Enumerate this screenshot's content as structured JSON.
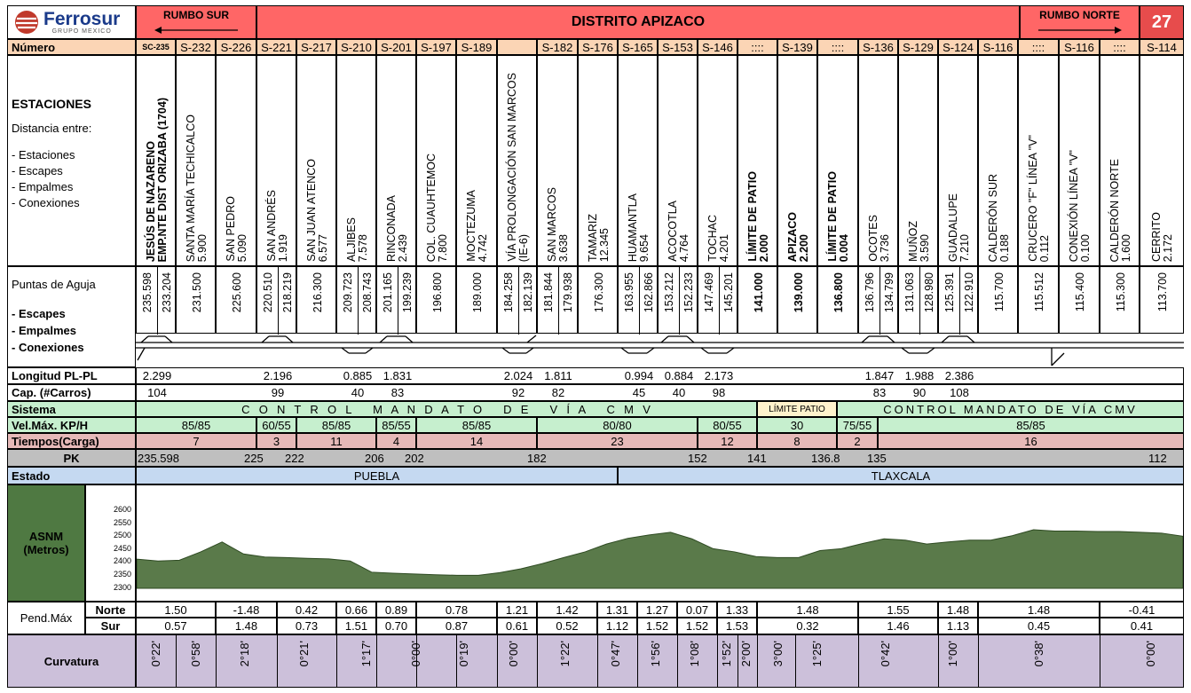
{
  "header": {
    "logo_text": "Ferrosur",
    "logo_sub": "GRUPO MEXICO",
    "rumbo_sur": "RUMBO SUR",
    "distrito": "DISTRITO APIZACO",
    "rumbo_norte": "RUMBO NORTE",
    "page": "27",
    "colors": {
      "red": "#ff6666",
      "peach": "#fbd5b5",
      "green": "#c6efce",
      "blue": "#c5d9f1",
      "pink": "#e6b9b8",
      "grey": "#bfbfbf",
      "purple": "#ccc0da",
      "asnm_green": "#4f7942"
    }
  },
  "labels": {
    "numero": "Número",
    "estaciones": "ESTACIONES",
    "distancia": "Distancia entre:",
    "d1": "- Estaciones",
    "d2": "- Escapes",
    "d3": "- Empalmes",
    "d4": "- Conexiones",
    "puntas": "Puntas de Aguja",
    "p1": "- Escapes",
    "p2": "- Empalmes",
    "p3": "- Conexiones",
    "longitud": "Longitud PL-PL",
    "cap": "Cap. (#Carros)",
    "sistema": "Sistema",
    "velmax": "Vel.Máx. KP/H",
    "tiempos": "Tiempos(Carga)",
    "pk": "PK",
    "estado": "Estado",
    "asnm": "ASNM (Metros)",
    "pend": "Pend.Máx",
    "norte": "Norte",
    "sur": "Sur",
    "curvatura": "Curvatura"
  },
  "numeros": [
    "SC-235",
    "S-232",
    "S-226",
    "S-221",
    "S-217",
    "S-210",
    "S-201",
    "S-197",
    "S-189",
    "",
    "S-182",
    "S-176",
    "S-165",
    "S-153",
    "S-146",
    "::::",
    "S-139",
    "::::",
    "S-136",
    "S-129",
    "S-124",
    "S-116",
    "::::",
    "S-116",
    "::::",
    "S-114"
  ],
  "stations": [
    {
      "name": "JESÚS DE NAZARENO",
      "name2": "EMP.NTE DIST ORIZABA (1704)",
      "dist": "",
      "bold": true
    },
    {
      "name": "SANTA MARÍA TECHICALCO",
      "dist": "5.900"
    },
    {
      "name": "SAN PEDRO",
      "dist": "5.090"
    },
    {
      "name": "SAN ANDRÉS",
      "dist": "1.919"
    },
    {
      "name": "SAN JUAN ATENCO",
      "dist": "6.577"
    },
    {
      "name": "ALJIBES",
      "dist": "7.578"
    },
    {
      "name": "RINCONADA",
      "dist": "2.439"
    },
    {
      "name": "COL. CUAUHTEMOC",
      "dist": "7.800"
    },
    {
      "name": "MOCTEZUMA",
      "dist": "4.742"
    },
    {
      "name": "VÍA PROLONGACIÓN SAN MARCOS",
      "name2": "(IE-6)",
      "dist": ""
    },
    {
      "name": "SAN MARCOS",
      "dist": "3.638"
    },
    {
      "name": "TAMARIZ",
      "dist": "12.345"
    },
    {
      "name": "HUAMANTLA",
      "dist": "9.654"
    },
    {
      "name": "ACOCOTLA",
      "dist": "4.764"
    },
    {
      "name": "TOCHAC",
      "dist": "4.201"
    },
    {
      "name": "LÍMITE DE PATIO",
      "dist": "2.000",
      "bold": true
    },
    {
      "name": "APIZACO",
      "dist": "2.200",
      "bold": true
    },
    {
      "name": "LÍMITE DE PATIO",
      "dist": "0.004",
      "bold": true
    },
    {
      "name": "OCOTES",
      "dist": "3.736"
    },
    {
      "name": "MUÑOZ",
      "dist": "3.590"
    },
    {
      "name": "GUADALUPE",
      "dist": "7.210"
    },
    {
      "name": "CALDERÓN SUR",
      "dist": "0.188"
    },
    {
      "name": "CRUCERO \"F\" LÍNEA \"V\"",
      "dist": "0.112"
    },
    {
      "name": "CONEXIÓN LÍNEA \"V\"",
      "dist": "0.100"
    },
    {
      "name": "CALDERÓN NORTE",
      "dist": "1.600"
    },
    {
      "name": "CERRITO",
      "dist": "2.172"
    }
  ],
  "puntas": [
    {
      "a": "235.598",
      "b": "233.204"
    },
    {
      "a": "231.500"
    },
    {
      "a": "225.600"
    },
    {
      "a": "220.510",
      "b": "218.219"
    },
    {
      "a": "216.300"
    },
    {
      "a": "209.723",
      "b": "208.743"
    },
    {
      "a": "201.165",
      "b": "199.239"
    },
    {
      "a": "196.800"
    },
    {
      "a": "189.000"
    },
    {
      "a": "184.258",
      "b": "182.139"
    },
    {
      "a": "181.844",
      "b": "179.938"
    },
    {
      "a": "176.300"
    },
    {
      "a": "163.955",
      "b": "162.866"
    },
    {
      "a": "153.212",
      "b": "152.233"
    },
    {
      "a": "147.469",
      "b": "145.201"
    },
    {
      "a": "141.000",
      "bold": true
    },
    {
      "a": "139.000",
      "bold": true
    },
    {
      "a": "136.800",
      "bold": true
    },
    {
      "a": "136.796",
      "b": "134.799"
    },
    {
      "a": "131.063",
      "b": "128.980"
    },
    {
      "a": "125.391",
      "b": "122.910"
    },
    {
      "a": "115.700"
    },
    {
      "a": "115.512"
    },
    {
      "a": "115.400"
    },
    {
      "a": "115.300"
    },
    {
      "a": "113.700"
    }
  ],
  "longitud": [
    {
      "v": "2.299",
      "c": 0
    },
    {
      "v": "2.196",
      "c": 3
    },
    {
      "v": "0.885",
      "c": 5
    },
    {
      "v": "1.831",
      "c": 6
    },
    {
      "v": "2.024",
      "c": 9
    },
    {
      "v": "1.811",
      "c": 10
    },
    {
      "v": "0.994",
      "c": 12
    },
    {
      "v": "0.884",
      "c": 13
    },
    {
      "v": "2.173",
      "c": 14
    },
    {
      "v": "1.847",
      "c": 18
    },
    {
      "v": "1.988",
      "c": 19
    },
    {
      "v": "2.386",
      "c": 20
    }
  ],
  "cap": [
    {
      "v": "104",
      "c": 0
    },
    {
      "v": "99",
      "c": 3
    },
    {
      "v": "40",
      "c": 5
    },
    {
      "v": "83",
      "c": 6
    },
    {
      "v": "92",
      "c": 9
    },
    {
      "v": "82",
      "c": 10
    },
    {
      "v": "45",
      "c": 12
    },
    {
      "v": "40",
      "c": 13
    },
    {
      "v": "98",
      "c": 14
    },
    {
      "v": "83",
      "c": 18
    },
    {
      "v": "90",
      "c": 19
    },
    {
      "v": "108",
      "c": 20
    }
  ],
  "sistema": {
    "a": "C  O  N  T  R  O  L     M  A  N  D  A  T  O     D  E     V  Í  A     C  M  V",
    "limite": "LÍMITE PATIO",
    "b": "CONTROL MANDATO DE VÍA CMV"
  },
  "velmax": [
    "85/85",
    "60/55",
    "85/85",
    "85/55",
    "85/85",
    "80/80",
    "80/55",
    "30",
    "75/55",
    "85/85"
  ],
  "tiempos": [
    "7",
    "3",
    "11",
    "4",
    "14",
    "23",
    "12",
    "8",
    "2",
    "16"
  ],
  "pk": [
    "235.598",
    "225",
    "222",
    "206",
    "202",
    "182",
    "152",
    "141",
    "136.8",
    "135",
    "112"
  ],
  "estado": [
    "PUEBLA",
    "TLAXCALA"
  ],
  "asnm_axis": [
    "2600",
    "2550",
    "2500",
    "2450",
    "2400",
    "2350",
    "2300"
  ],
  "asnm_profile": [
    2412,
    2405,
    2408,
    2440,
    2478,
    2432,
    2420,
    2418,
    2415,
    2413,
    2405,
    2362,
    2358,
    2355,
    2352,
    2350,
    2350,
    2360,
    2375,
    2395,
    2418,
    2440,
    2470,
    2492,
    2505,
    2515,
    2490,
    2452,
    2440,
    2422,
    2418,
    2418,
    2445,
    2452,
    2472,
    2490,
    2485,
    2470,
    2478,
    2485,
    2485,
    2502,
    2525,
    2520,
    2520,
    2518,
    2518,
    2515,
    2512,
    2500
  ],
  "pend_norte": [
    "1.50",
    "-1.48",
    "0.42",
    "0.66",
    "0.89",
    "0.78",
    "1.21",
    "1.42",
    "1.31",
    "1.27",
    "0.07",
    "1.33",
    "1.48",
    "1.55",
    "1.48",
    "1.48",
    "-0.41"
  ],
  "pend_sur": [
    "0.57",
    "1.48",
    "0.73",
    "1.51",
    "0.70",
    "0.87",
    "0.61",
    "0.52",
    "1.12",
    "1.52",
    "1.52",
    "1.53",
    "0.32",
    "1.46",
    "1.13",
    "0.45",
    "0.41"
  ],
  "curvatura": [
    "0°22'",
    "0°58'",
    "2°18'",
    "0°21'",
    "1°17'",
    "0°00'",
    "0°19'",
    "0°00'",
    "1°22'",
    "0°47'",
    "1°56'",
    "1°08'",
    "1°52'",
    "2°00'",
    "3°00'",
    "1°25'",
    "0°42'",
    "1°00'",
    "0°38'",
    "0°00'"
  ]
}
